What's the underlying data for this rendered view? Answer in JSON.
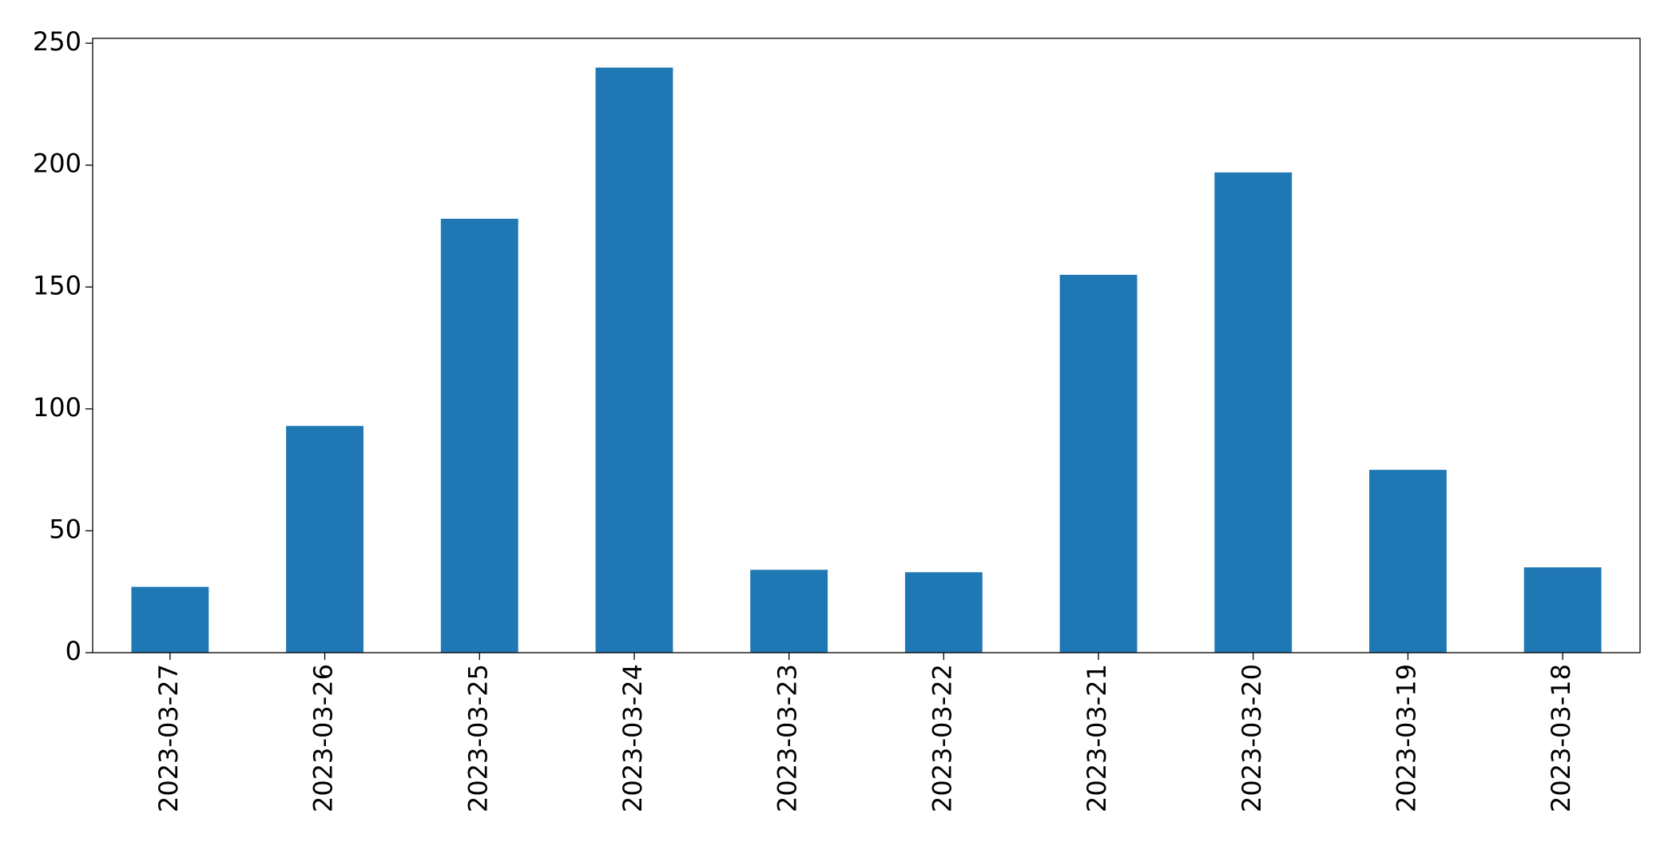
{
  "chart_data": {
    "type": "bar",
    "categories": [
      "2023-03-27",
      "2023-03-26",
      "2023-03-25",
      "2023-03-24",
      "2023-03-23",
      "2023-03-22",
      "2023-03-21",
      "2023-03-20",
      "2023-03-19",
      "2023-03-18"
    ],
    "values": [
      27,
      93,
      178,
      240,
      34,
      33,
      155,
      197,
      75,
      35
    ],
    "color": "#1f77b4",
    "ylim": [
      0,
      252
    ],
    "yticks": [
      0,
      50,
      100,
      150,
      200,
      250
    ],
    "grid": false
  }
}
